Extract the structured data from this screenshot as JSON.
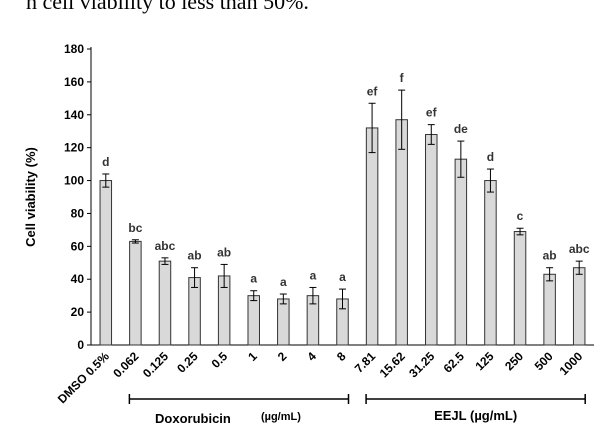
{
  "caption_fragment": "h cell viability to less than 50%.",
  "chart_data": {
    "type": "bar",
    "ylabel": "Cell viability  (%)",
    "ylim": [
      0,
      180
    ],
    "yticks": [
      "0",
      "20",
      "40",
      "60",
      "80",
      "100",
      "120",
      "140",
      "160",
      "180"
    ],
    "grid": false,
    "bar_color": "#d9d9d9",
    "categories": [
      "DMSO 0.5%",
      "0.062",
      "0.125",
      "0.25",
      "0.5",
      "1",
      "2",
      "4",
      "8",
      "7.81",
      "15.62",
      "31.25",
      "62.5",
      "125",
      "250",
      "500",
      "1000"
    ],
    "values": [
      100,
      63,
      51,
      41,
      42,
      30,
      28,
      30,
      28,
      132,
      137,
      128,
      113,
      100,
      69,
      43,
      47
    ],
    "errors": [
      4,
      1,
      2,
      6,
      7,
      3,
      3,
      5,
      6,
      15,
      18,
      6,
      11,
      7,
      2,
      4,
      4
    ],
    "labels": [
      "d",
      "bc",
      "abc",
      "ab",
      "ab",
      "a",
      "a",
      "a",
      "a",
      "ef",
      "f",
      "ef",
      "de",
      "d",
      "c",
      "ab",
      "abc"
    ],
    "groups": [
      {
        "name": "Doxorubicin",
        "unit": "(µg/mL)",
        "from": 1,
        "to": 8
      },
      {
        "name": "EEJL (µg/mL)",
        "unit": "",
        "from": 9,
        "to": 16
      }
    ]
  }
}
